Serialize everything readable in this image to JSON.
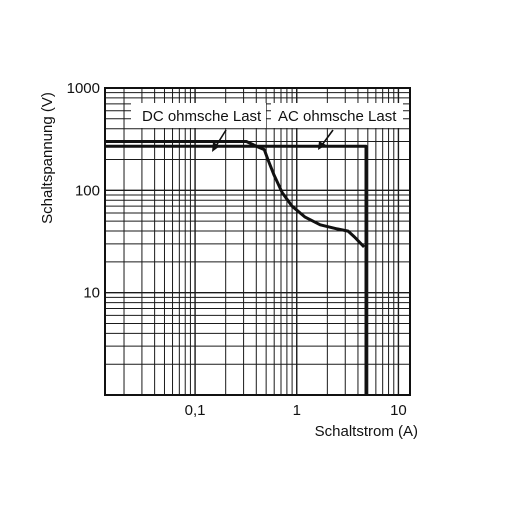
{
  "chart_data": {
    "type": "line",
    "xlabel": "Schaltstrom (A)",
    "ylabel": "Schaltspannung (V)",
    "x_scale": "log",
    "y_scale": "log",
    "xlim": [
      0.013,
      13
    ],
    "ylim": [
      1,
      1000
    ],
    "x_ticks": [
      {
        "value": 0.1,
        "label": "0,1"
      },
      {
        "value": 1,
        "label": "1"
      },
      {
        "value": 10,
        "label": "10"
      }
    ],
    "y_ticks": [
      {
        "value": 10,
        "label": "10"
      },
      {
        "value": 100,
        "label": "100"
      },
      {
        "value": 1000,
        "label": "1000"
      }
    ],
    "grid": true,
    "series": [
      {
        "name": "DC ohmsche Last",
        "points": [
          [
            0.013,
            300
          ],
          [
            0.32,
            300
          ],
          [
            0.4,
            270
          ],
          [
            0.48,
            250
          ],
          [
            0.52,
            200
          ],
          [
            0.6,
            140
          ],
          [
            0.72,
            95
          ],
          [
            0.9,
            70
          ],
          [
            1.2,
            55
          ],
          [
            1.7,
            46
          ],
          [
            2.5,
            42
          ],
          [
            3.2,
            40
          ],
          [
            3.7,
            35
          ],
          [
            4.6,
            28
          ]
        ]
      },
      {
        "name": "AC ohmsche Last",
        "points": [
          [
            0.013,
            270
          ],
          [
            4.8,
            270
          ],
          [
            4.8,
            1
          ]
        ]
      }
    ]
  }
}
